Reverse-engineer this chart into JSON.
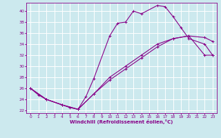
{
  "xlabel": "Windchill (Refroidissement éolien,°C)",
  "bg_color": "#cce9ee",
  "grid_color": "#ffffff",
  "line_color": "#880088",
  "xlim": [
    -0.5,
    23.5
  ],
  "ylim": [
    21.5,
    41.5
  ],
  "xticks": [
    0,
    1,
    2,
    3,
    4,
    5,
    6,
    7,
    8,
    9,
    10,
    11,
    12,
    13,
    14,
    15,
    16,
    17,
    18,
    19,
    20,
    21,
    22,
    23
  ],
  "yticks": [
    22,
    24,
    26,
    28,
    30,
    32,
    34,
    36,
    38,
    40
  ],
  "curve1_x": [
    0,
    1,
    2,
    4,
    5,
    6,
    7,
    8,
    10,
    11,
    12,
    13,
    14,
    16,
    17,
    18,
    19,
    20,
    22,
    23
  ],
  "curve1_y": [
    26.0,
    24.8,
    24.0,
    23.0,
    22.5,
    22.2,
    24.5,
    27.8,
    35.5,
    37.8,
    38.0,
    40.0,
    39.5,
    41.0,
    40.8,
    39.0,
    37.0,
    35.0,
    34.0,
    32.0
  ],
  "curve2_x": [
    0,
    2,
    4,
    6,
    8,
    10,
    12,
    14,
    16,
    18,
    20,
    22,
    23
  ],
  "curve2_y": [
    26.0,
    24.0,
    23.0,
    22.2,
    25.0,
    27.5,
    29.5,
    31.5,
    33.5,
    35.0,
    35.5,
    35.2,
    34.5
  ],
  "curve3_x": [
    0,
    2,
    4,
    6,
    8,
    10,
    12,
    14,
    16,
    18,
    20,
    22,
    23
  ],
  "curve3_y": [
    26.0,
    24.0,
    23.0,
    22.2,
    25.0,
    28.0,
    30.0,
    32.0,
    34.0,
    35.0,
    35.5,
    32.0,
    32.0
  ]
}
